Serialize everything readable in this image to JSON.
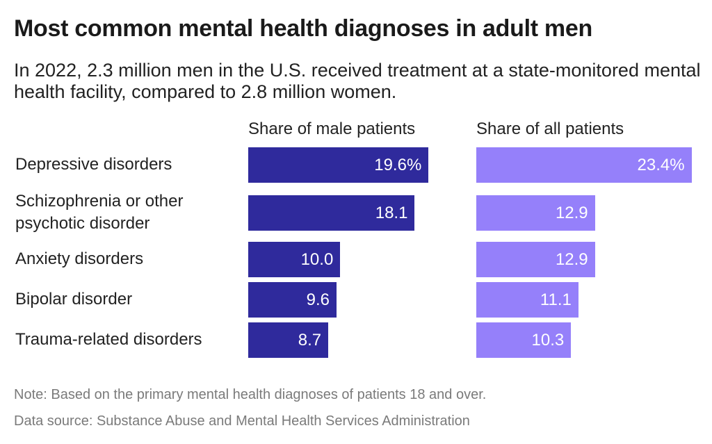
{
  "title": "Most common mental health diagnoses in adult men",
  "subtitle": "In 2022, 2.3 million men in the U.S. received treatment at a state-monitored mental health facility, compared to 2.8 million women.",
  "note": "Note: Based on the primary mental health diagnoses of patients 18 and over.",
  "source": "Data source: Substance Abuse and Mental Health Services Administration",
  "chart_data": {
    "type": "bar",
    "orientation": "horizontal",
    "categories": [
      "Depressive disorders",
      "Schizophrenia or other psychotic disorder",
      "Anxiety disorders",
      "Bipolar disorder",
      "Trauma-related disorders"
    ],
    "series": [
      {
        "name": "Share of male patients",
        "values": [
          19.6,
          18.1,
          10.0,
          9.6,
          8.7
        ],
        "labels": [
          "19.6%",
          "18.1",
          "10.0",
          "9.6",
          "8.7"
        ],
        "color": "#2f2a9c"
      },
      {
        "name": "Share of all patients",
        "values": [
          23.4,
          12.9,
          12.9,
          11.1,
          10.3
        ],
        "labels": [
          "23.4%",
          "12.9",
          "12.9",
          "11.1",
          "10.3"
        ],
        "color": "#9580fa"
      }
    ],
    "unit": "%",
    "grid": false
  }
}
